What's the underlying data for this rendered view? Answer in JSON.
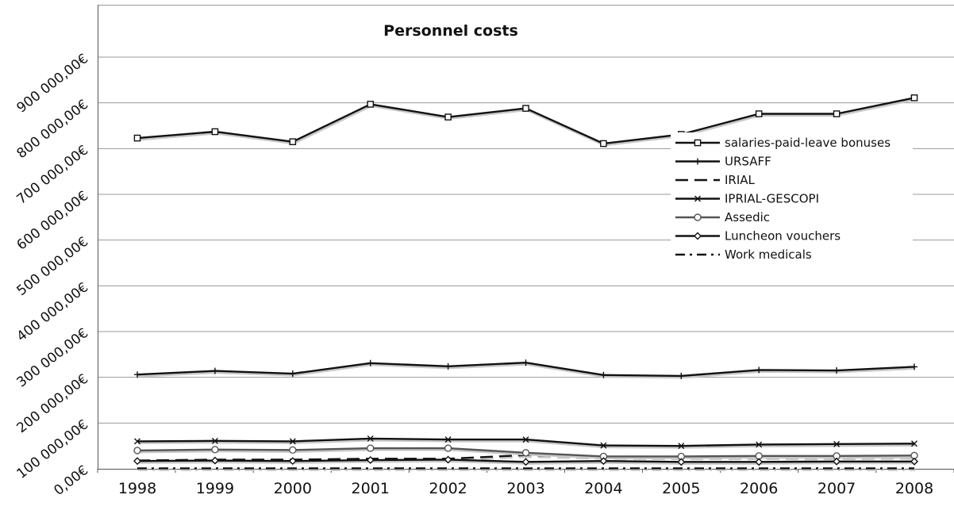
{
  "chart_data": {
    "type": "line",
    "title": "Personnel costs",
    "xlabel": "",
    "ylabel": "",
    "x": [
      "1998",
      "1999",
      "2000",
      "2001",
      "2002",
      "2003",
      "2004",
      "2005",
      "2006",
      "2007",
      "2008"
    ],
    "ylim": [
      0,
      900000000
    ],
    "yticks": [
      {
        "value": 0,
        "label": "0,00€"
      },
      {
        "value": 100000000,
        "label": "100 000,00€"
      },
      {
        "value": 200000000,
        "label": "200 000,00€"
      },
      {
        "value": 300000000,
        "label": "300 000,00€"
      },
      {
        "value": 400000000,
        "label": "400 000,00€"
      },
      {
        "value": 500000000,
        "label": "500 000,00€"
      },
      {
        "value": 600000000,
        "label": "600 000,00€"
      },
      {
        "value": 700000000,
        "label": "700 000,00€"
      },
      {
        "value": 800000000,
        "label": "800 000,00€"
      },
      {
        "value": 900000000,
        "label": "900 000,00€"
      }
    ],
    "grid": "horizontal",
    "legend_position": "right",
    "series": [
      {
        "name": "salaries-paid-leave bonuses",
        "marker": "square",
        "dash": "solid",
        "color": "#111111",
        "values": [
          723000000,
          737000000,
          715000000,
          797000000,
          769000000,
          788000000,
          711000000,
          731000000,
          776000000,
          776000000,
          811000000
        ]
      },
      {
        "name": "URSAFF",
        "marker": "plus",
        "dash": "solid",
        "color": "#111111",
        "values": [
          206000000,
          214000000,
          208000000,
          231000000,
          224000000,
          232000000,
          205000000,
          203000000,
          216000000,
          215000000,
          223000000
        ]
      },
      {
        "name": "IRIAL",
        "marker": "none",
        "dash": "longdash",
        "color": "#111111",
        "values": [
          18000000,
          20000000,
          20000000,
          22000000,
          22000000,
          30000000,
          26000000,
          25000000,
          25000000,
          25000000,
          26000000
        ]
      },
      {
        "name": "IPRIAL-GESCOPI",
        "marker": "x",
        "dash": "solid",
        "color": "#111111",
        "values": [
          60000000,
          61000000,
          60000000,
          66000000,
          64000000,
          64000000,
          51000000,
          50000000,
          53000000,
          54000000,
          55000000
        ]
      },
      {
        "name": "Assedic",
        "marker": "circle",
        "dash": "solid",
        "color": "#555555",
        "values": [
          40000000,
          42000000,
          41000000,
          45000000,
          45000000,
          35000000,
          27000000,
          27000000,
          28000000,
          28000000,
          29000000
        ]
      },
      {
        "name": "Luncheon vouchers",
        "marker": "diamond",
        "dash": "solid",
        "color": "#111111",
        "values": [
          17000000,
          18000000,
          17000000,
          19000000,
          20000000,
          15000000,
          17000000,
          15000000,
          15000000,
          16000000,
          16000000
        ]
      },
      {
        "name": "Work medicals",
        "marker": "none",
        "dash": "dashdot",
        "color": "#111111",
        "values": [
          1000000,
          1000000,
          1000000,
          1000000,
          1000000,
          1000000,
          1000000,
          1000000,
          1000000,
          1000000,
          1000000
        ]
      }
    ]
  }
}
